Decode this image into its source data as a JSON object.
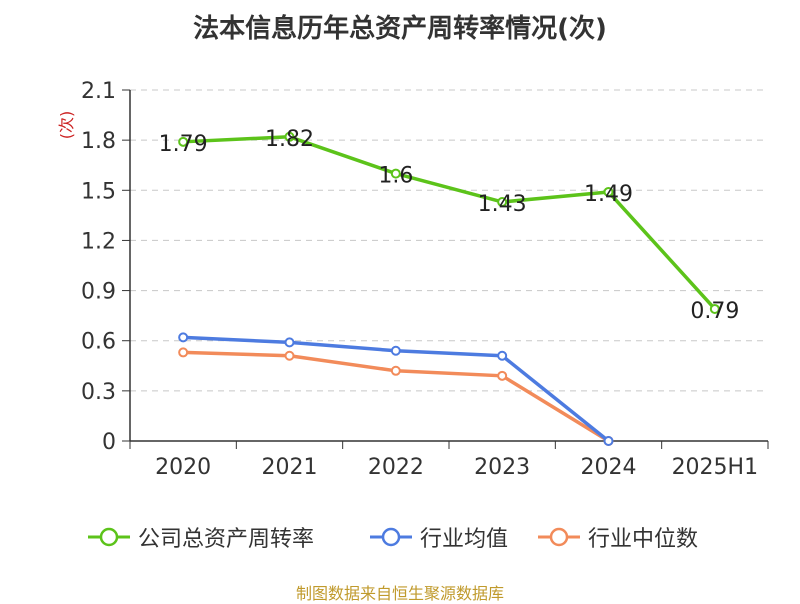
{
  "title": "法本信息历年总资产周转率情况(次)",
  "source": "制图数据来自恒生聚源数据库",
  "chart_data": {
    "type": "line",
    "ylabel": "(次)",
    "categories": [
      "2020",
      "2021",
      "2022",
      "2023",
      "2024",
      "2025H1"
    ],
    "ylim": [
      0,
      2.1
    ],
    "yticks": [
      0,
      0.3,
      0.6,
      0.9,
      1.2,
      1.5,
      1.8,
      2.1
    ],
    "ytick_labels": [
      "0",
      "0.3",
      "0.6",
      "0.9",
      "1.2",
      "1.5",
      "1.8",
      "2.1"
    ],
    "grid": true,
    "legend_position": "bottom",
    "series": [
      {
        "name": "公司总资产周转率",
        "color": "#5cc31a",
        "values": [
          1.79,
          1.82,
          1.6,
          1.43,
          1.49,
          0.79
        ],
        "labels": [
          "1.79",
          "1.82",
          "1.6",
          "1.43",
          "1.49",
          "0.79"
        ]
      },
      {
        "name": "行业均值",
        "color": "#4d7be0",
        "values": [
          0.62,
          0.59,
          0.54,
          0.51,
          0.0,
          null
        ]
      },
      {
        "name": "行业中位数",
        "color": "#f28b5a",
        "values": [
          0.53,
          0.51,
          0.42,
          0.39,
          0.0,
          null
        ]
      }
    ]
  }
}
